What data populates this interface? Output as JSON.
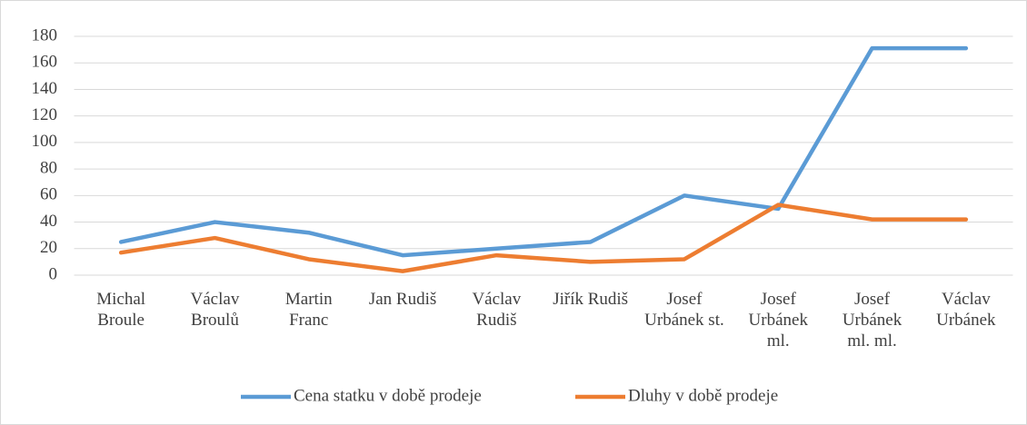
{
  "chart_data": {
    "type": "line",
    "categories": [
      "Michal Broule",
      "Václav Broulů",
      "Martin Franc",
      "Jan Rudiš",
      "Václav Rudiš",
      "Jiřík Rudiš",
      "Josef Urbánek st.",
      "Josef Urbánek ml.",
      "Josef Urbánek ml. ml.",
      "Václav Urbánek"
    ],
    "series": [
      {
        "name": "Cena statku v době prodeje",
        "color": "#5b9bd5",
        "values": [
          25,
          40,
          32,
          15,
          20,
          25,
          60,
          50,
          171,
          171
        ]
      },
      {
        "name": "Dluhy v době prodeje",
        "color": "#ed7d31",
        "values": [
          17,
          28,
          12,
          3,
          15,
          10,
          12,
          53,
          42,
          42
        ]
      }
    ],
    "ylim": [
      0,
      180
    ],
    "yticks": [
      0,
      20,
      40,
      60,
      80,
      100,
      120,
      140,
      160,
      180
    ],
    "grid": true,
    "legend": "bottom"
  }
}
